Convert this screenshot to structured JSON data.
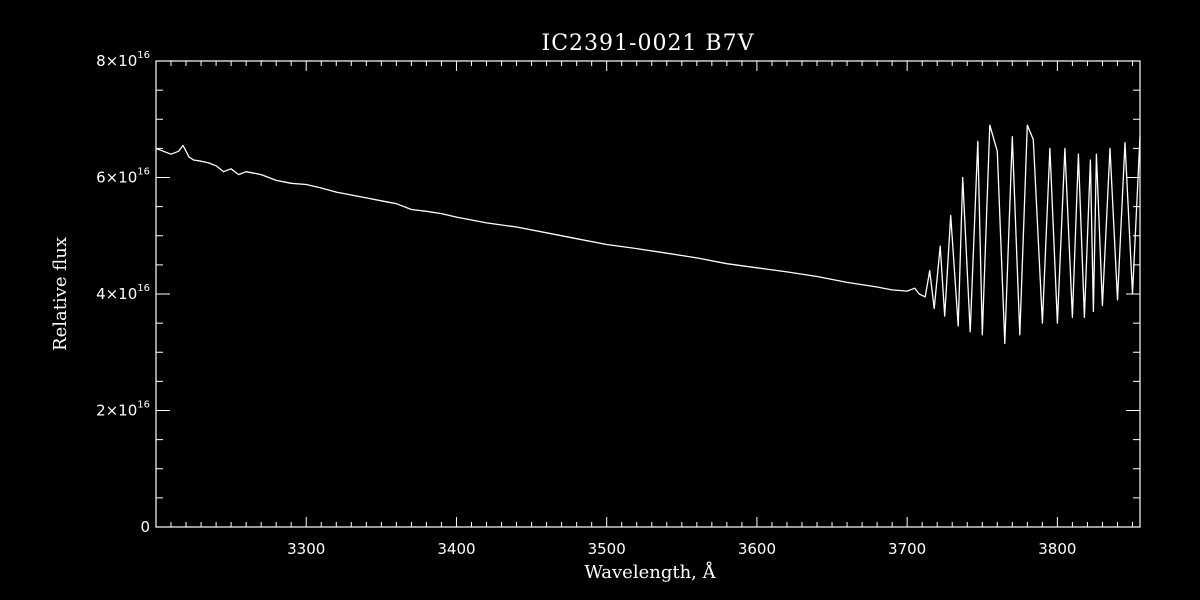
{
  "chart_data": {
    "type": "line",
    "title": "IC2391-0021   B7V",
    "xlabel": "Wavelength, Å",
    "ylabel": "Relative flux",
    "xlim": [
      3200,
      3855
    ],
    "ylim": [
      0,
      8e+16
    ],
    "x_ticks": [
      3300,
      3400,
      3500,
      3600,
      3700,
      3800
    ],
    "y_ticks": [
      {
        "value": 0,
        "mantissa": "0",
        "exponent": ""
      },
      {
        "value": 2e+16,
        "mantissa": "2×10",
        "exponent": "16"
      },
      {
        "value": 4e+16,
        "mantissa": "4×10",
        "exponent": "16"
      },
      {
        "value": 6e+16,
        "mantissa": "6×10",
        "exponent": "16"
      },
      {
        "value": 8e+16,
        "mantissa": "8×10",
        "exponent": "16"
      }
    ],
    "grid": false,
    "line_color": "#ffffff",
    "background_color": "#000000",
    "series": [
      {
        "x": [
          3200,
          3205,
          3210,
          3215,
          3218,
          3222,
          3225,
          3230,
          3235,
          3240,
          3245,
          3250,
          3255,
          3260,
          3270,
          3280,
          3290,
          3300,
          3310,
          3320,
          3330,
          3340,
          3350,
          3360,
          3370,
          3380,
          3390,
          3400,
          3420,
          3440,
          3460,
          3480,
          3500,
          3520,
          3540,
          3560,
          3580,
          3600,
          3620,
          3640,
          3660,
          3680,
          3690,
          3700,
          3705,
          3708,
          3712,
          3715,
          3718,
          3722,
          3725,
          3729,
          3734,
          3737,
          3742,
          3747,
          3750,
          3755,
          3760,
          3765,
          3770,
          3775,
          3780,
          3784,
          3790,
          3795,
          3800,
          3805,
          3810,
          3814,
          3818,
          3822,
          3824,
          3826,
          3830,
          3835,
          3840,
          3845,
          3850,
          3855
        ],
        "y": [
          6.5e+16,
          6.45e+16,
          6.4e+16,
          6.45e+16,
          6.55e+16,
          6.35e+16,
          6.3e+16,
          6.28e+16,
          6.25e+16,
          6.2e+16,
          6.1e+16,
          6.15e+16,
          6.05e+16,
          6.1e+16,
          6.05e+16,
          5.95e+16,
          5.9e+16,
          5.88e+16,
          5.82e+16,
          5.75e+16,
          5.7e+16,
          5.65e+16,
          5.6e+16,
          5.55e+16,
          5.45e+16,
          5.42e+16,
          5.38e+16,
          5.32e+16,
          5.22e+16,
          5.15e+16,
          5.05e+16,
          4.95e+16,
          4.85e+16,
          4.78e+16,
          4.7e+16,
          4.62e+16,
          4.52e+16,
          4.45e+16,
          4.38e+16,
          4.3e+16,
          4.2e+16,
          4.12e+16,
          4.07e+16,
          4.05e+16,
          4.1e+16,
          4e+16,
          3.95e+16,
          4.4e+16,
          3.75e+16,
          4.82e+16,
          3.62e+16,
          5.35e+16,
          3.45e+16,
          6e+16,
          3.35e+16,
          6.62e+16,
          3.3e+16,
          6.9e+16,
          6.45e+16,
          3.15e+16,
          6.7e+16,
          3.3e+16,
          6.9e+16,
          6.65e+16,
          3.5e+16,
          6.5e+16,
          3.5e+16,
          6.5e+16,
          3.6e+16,
          6.4e+16,
          3.6e+16,
          6.3e+16,
          3.7e+16,
          6.4e+16,
          3.8e+16,
          6.5e+16,
          3.9e+16,
          6.6e+16,
          4e+16,
          6.7e+16
        ]
      }
    ]
  }
}
